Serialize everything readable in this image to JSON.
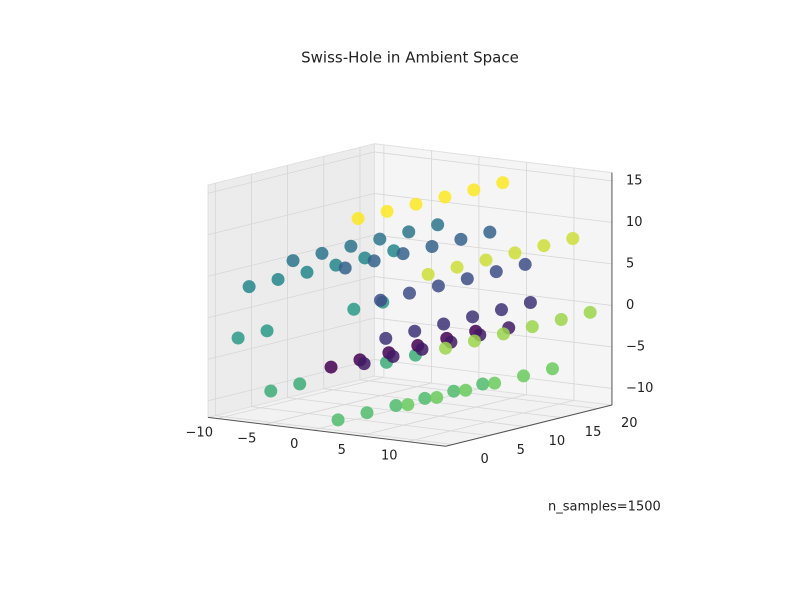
{
  "chart_data": {
    "type": "scatter3d",
    "title": "Swiss-Hole in Ambient Space",
    "annotation": "n_samples=1500",
    "colormap": "viridis",
    "x": [
      0.42,
      3.9,
      6.18,
      5.63,
      1.91,
      -3.58,
      -8.2,
      -9.36,
      -5.92,
      1.16,
      8.5,
      12.47,
      10.64,
      3.27,
      0.42,
      3.9,
      6.18,
      5.63,
      1.91,
      -3.58,
      -8.2,
      -9.36,
      -5.92,
      1.16,
      8.5,
      12.47,
      10.64,
      3.27,
      0.42,
      3.9,
      6.18,
      5.63,
      1.91,
      -3.58,
      -8.2,
      1.16,
      8.5,
      12.47,
      10.64,
      3.27,
      0.42,
      3.9,
      6.18,
      5.63,
      1.91,
      -3.58,
      -8.2,
      1.16,
      8.5,
      12.47,
      10.64,
      3.27,
      0.42,
      3.9,
      6.18,
      5.63,
      1.91,
      -3.58,
      -8.2,
      -9.36,
      -5.92,
      1.16,
      8.5,
      12.47,
      10.64,
      3.27,
      0.42,
      3.9,
      6.18,
      5.63,
      1.91,
      -3.58,
      -8.2,
      -9.36,
      -5.92,
      1.16,
      8.5,
      12.47,
      10.64,
      3.27
    ],
    "y": [
      1,
      1,
      1,
      1,
      1,
      1,
      1,
      1,
      1,
      1,
      1,
      1,
      1,
      1,
      5,
      5,
      5,
      5,
      5,
      5,
      5,
      5,
      5,
      5,
      5,
      5,
      5,
      5,
      9,
      9,
      9,
      9,
      9,
      9,
      9,
      9,
      9,
      9,
      9,
      9,
      13,
      13,
      13,
      13,
      13,
      13,
      13,
      13,
      13,
      13,
      13,
      13,
      17,
      17,
      17,
      17,
      17,
      17,
      17,
      17,
      17,
      17,
      17,
      17,
      17,
      17,
      21,
      21,
      21,
      21,
      21,
      21,
      21,
      21,
      21,
      21,
      21,
      21,
      21,
      21
    ],
    "z": [
      -4.78,
      -3.88,
      -0.52,
      3.99,
      7.36,
      7.49,
      3.71,
      -2.64,
      -8.55,
      -11.04,
      -8.18,
      -0.83,
      7.81,
      13.51,
      -4.78,
      -3.88,
      -0.52,
      3.99,
      7.36,
      7.49,
      3.71,
      -2.64,
      -8.55,
      -11.04,
      -8.18,
      -0.83,
      7.81,
      13.51,
      -4.78,
      -3.88,
      -0.52,
      3.99,
      7.36,
      7.49,
      3.71,
      -11.04,
      -8.18,
      -0.83,
      7.81,
      13.51,
      -4.78,
      -3.88,
      -0.52,
      3.99,
      7.36,
      7.49,
      3.71,
      -11.04,
      -8.18,
      -0.83,
      7.81,
      13.51,
      -4.78,
      -3.88,
      -0.52,
      3.99,
      7.36,
      7.49,
      3.71,
      -2.64,
      -8.55,
      -11.04,
      -8.18,
      -0.83,
      7.81,
      13.51,
      -4.78,
      -3.88,
      -0.52,
      3.99,
      7.36,
      7.49,
      3.71,
      -2.64,
      -8.55,
      -11.04,
      -8.18,
      -0.83,
      7.81,
      13.51
    ],
    "color_values": [
      4.8,
      5.5,
      6.2,
      6.9,
      7.6,
      8.3,
      9.0,
      9.7,
      10.4,
      11.1,
      11.8,
      12.5,
      13.2,
      13.9,
      4.8,
      5.5,
      6.2,
      6.9,
      7.6,
      8.3,
      9.0,
      9.7,
      10.4,
      11.1,
      11.8,
      12.5,
      13.2,
      13.9,
      4.8,
      5.5,
      6.2,
      6.9,
      7.6,
      8.3,
      9.0,
      11.1,
      11.8,
      12.5,
      13.2,
      13.9,
      4.8,
      5.5,
      6.2,
      6.9,
      7.6,
      8.3,
      9.0,
      11.1,
      11.8,
      12.5,
      13.2,
      13.9,
      4.8,
      5.5,
      6.2,
      6.9,
      7.6,
      8.3,
      9.0,
      9.7,
      10.4,
      11.1,
      11.8,
      12.5,
      13.2,
      13.9,
      4.8,
      5.5,
      6.2,
      6.9,
      7.6,
      8.3,
      9.0,
      9.7,
      10.4,
      11.1,
      11.8,
      12.5,
      13.2,
      13.9
    ],
    "xlim": [
      -11,
      14
    ],
    "xticks": [
      {
        "value": -10,
        "label": "−10"
      },
      {
        "value": -5,
        "label": "−5"
      },
      0,
      5,
      10
    ],
    "ylim": [
      -1,
      22
    ],
    "yticks": [
      0,
      5,
      10,
      15,
      20
    ],
    "zlim": [
      -12,
      16
    ],
    "zticks": [
      {
        "value": -10,
        "label": "−10"
      },
      {
        "value": -5,
        "label": "−5"
      },
      0,
      5,
      10,
      15
    ],
    "grid": true
  }
}
